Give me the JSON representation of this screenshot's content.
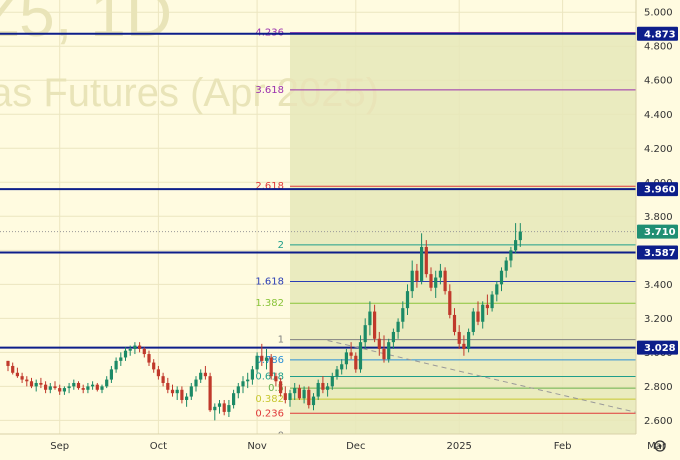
{
  "watermark": {
    "line1": "Z5, 1D",
    "line2": "as Futures (Apr 2025)"
  },
  "chart_data": {
    "type": "candlestick",
    "y_axis_ticks": [
      "5.000",
      "4.800",
      "4.600",
      "4.400",
      "4.200",
      "4.000",
      "3.800",
      "3.600",
      "3.400",
      "3.200",
      "3.000",
      "2.800",
      "2.600"
    ],
    "ylim": [
      2.52,
      5.06
    ],
    "x_axis_ticks": [
      {
        "label": "Sep",
        "t": 11
      },
      {
        "label": "Oct",
        "t": 32
      },
      {
        "label": "Nov",
        "t": 53
      },
      {
        "label": "Dec",
        "t": 74
      },
      {
        "label": "2025",
        "t": 96
      },
      {
        "label": "Feb",
        "t": 118
      },
      {
        "label": "Mar",
        "t": 138
      }
    ],
    "horizontal_levels": [
      {
        "value": 4.873,
        "label": "4.873",
        "color": "#0d1e8a"
      },
      {
        "value": 3.96,
        "label": "3.960",
        "color": "#0d1e8a"
      },
      {
        "value": 3.587,
        "label": "3.587",
        "color": "#0d1e8a"
      },
      {
        "value": 3.028,
        "label": "3.028",
        "color": "#0d1e8a"
      }
    ],
    "last_price": {
      "value": 3.71,
      "label": "3.710",
      "color": "#1f8f73"
    },
    "fibonacci": {
      "start_t": 60,
      "levels": [
        {
          "ratio": "4.236",
          "value": 4.88,
          "color": "#9b2fae"
        },
        {
          "ratio": "3.618",
          "value": 4.543,
          "color": "#9b2fae"
        },
        {
          "ratio": "2.618",
          "value": 3.977,
          "color": "#e03a3a"
        },
        {
          "ratio": "2",
          "value": 3.632,
          "color": "#1f9e8a"
        },
        {
          "ratio": "1.618",
          "value": 3.417,
          "color": "#2a3db5"
        },
        {
          "ratio": "1.382",
          "value": 3.289,
          "color": "#8ac43a"
        },
        {
          "ratio": "1",
          "value": 3.075,
          "color": "#808080"
        },
        {
          "ratio": "0.786",
          "value": 2.956,
          "color": "#2a8fd6"
        },
        {
          "ratio": "0.618",
          "value": 2.858,
          "color": "#1f9e8a"
        },
        {
          "ratio": "0.5",
          "value": 2.79,
          "color": "#6ab04c"
        },
        {
          "ratio": "0.382",
          "value": 2.725,
          "color": "#c8c832"
        },
        {
          "ratio": "0.236",
          "value": 2.642,
          "color": "#e03a3a"
        },
        {
          "ratio": "0",
          "value": 2.51,
          "color": "#808080"
        }
      ]
    },
    "trendline": [
      [
        68,
        3.07
      ],
      [
        141,
        2.6
      ]
    ],
    "candles": [
      [
        2.95,
        2.95,
        2.89,
        2.92
      ],
      [
        2.92,
        2.94,
        2.87,
        2.88
      ],
      [
        2.88,
        2.91,
        2.85,
        2.86
      ],
      [
        2.86,
        2.88,
        2.82,
        2.84
      ],
      [
        2.84,
        2.86,
        2.8,
        2.83
      ],
      [
        2.83,
        2.85,
        2.79,
        2.8
      ],
      [
        2.8,
        2.84,
        2.77,
        2.82
      ],
      [
        2.82,
        2.85,
        2.79,
        2.81
      ],
      [
        2.81,
        2.83,
        2.76,
        2.78
      ],
      [
        2.78,
        2.82,
        2.76,
        2.8
      ],
      [
        2.8,
        2.83,
        2.78,
        2.79
      ],
      [
        2.79,
        2.81,
        2.75,
        2.77
      ],
      [
        2.77,
        2.8,
        2.75,
        2.79
      ],
      [
        2.79,
        2.82,
        2.76,
        2.8
      ],
      [
        2.8,
        2.84,
        2.78,
        2.82
      ],
      [
        2.82,
        2.83,
        2.78,
        2.79
      ],
      [
        2.79,
        2.81,
        2.76,
        2.78
      ],
      [
        2.78,
        2.82,
        2.76,
        2.8
      ],
      [
        2.8,
        2.83,
        2.78,
        2.81
      ],
      [
        2.81,
        2.82,
        2.77,
        2.78
      ],
      [
        2.78,
        2.81,
        2.76,
        2.8
      ],
      [
        2.8,
        2.86,
        2.79,
        2.84
      ],
      [
        2.84,
        2.92,
        2.82,
        2.9
      ],
      [
        2.9,
        2.97,
        2.88,
        2.95
      ],
      [
        2.95,
        3.0,
        2.92,
        2.97
      ],
      [
        2.97,
        3.03,
        2.95,
        3.01
      ],
      [
        3.01,
        3.04,
        2.98,
        3.02
      ],
      [
        3.02,
        3.06,
        2.99,
        3.04
      ],
      [
        3.04,
        3.06,
        3.0,
        3.02
      ],
      [
        3.02,
        3.03,
        2.97,
        2.99
      ],
      [
        2.99,
        3.01,
        2.92,
        2.94
      ],
      [
        2.94,
        2.96,
        2.88,
        2.9
      ],
      [
        2.9,
        2.92,
        2.84,
        2.86
      ],
      [
        2.86,
        2.88,
        2.8,
        2.82
      ],
      [
        2.82,
        2.85,
        2.76,
        2.78
      ],
      [
        2.78,
        2.81,
        2.74,
        2.76
      ],
      [
        2.76,
        2.8,
        2.72,
        2.78
      ],
      [
        2.78,
        2.8,
        2.7,
        2.72
      ],
      [
        2.72,
        2.76,
        2.68,
        2.74
      ],
      [
        2.74,
        2.82,
        2.72,
        2.8
      ],
      [
        2.8,
        2.86,
        2.77,
        2.84
      ],
      [
        2.84,
        2.9,
        2.82,
        2.88
      ],
      [
        2.88,
        2.92,
        2.84,
        2.86
      ],
      [
        2.86,
        2.88,
        2.65,
        2.66
      ],
      [
        2.66,
        2.7,
        2.6,
        2.68
      ],
      [
        2.68,
        2.72,
        2.64,
        2.7
      ],
      [
        2.7,
        2.72,
        2.63,
        2.65
      ],
      [
        2.65,
        2.72,
        2.62,
        2.69
      ],
      [
        2.69,
        2.78,
        2.67,
        2.76
      ],
      [
        2.76,
        2.82,
        2.73,
        2.8
      ],
      [
        2.8,
        2.86,
        2.76,
        2.83
      ],
      [
        2.83,
        2.88,
        2.79,
        2.84
      ],
      [
        2.84,
        2.92,
        2.81,
        2.9
      ],
      [
        2.9,
        3.0,
        2.88,
        2.98
      ],
      [
        2.98,
        3.05,
        2.92,
        2.95
      ],
      [
        2.95,
        3.02,
        2.9,
        2.97
      ],
      [
        2.97,
        2.99,
        2.84,
        2.86
      ],
      [
        2.86,
        2.88,
        2.8,
        2.83
      ],
      [
        2.83,
        2.85,
        2.74,
        2.76
      ],
      [
        2.76,
        2.8,
        2.7,
        2.72
      ],
      [
        2.72,
        2.78,
        2.68,
        2.76
      ],
      [
        2.76,
        2.82,
        2.72,
        2.79
      ],
      [
        2.79,
        2.81,
        2.72,
        2.73
      ],
      [
        2.73,
        2.8,
        2.7,
        2.78
      ],
      [
        2.78,
        2.8,
        2.67,
        2.69
      ],
      [
        2.69,
        2.76,
        2.66,
        2.74
      ],
      [
        2.74,
        2.84,
        2.72,
        2.82
      ],
      [
        2.82,
        2.86,
        2.76,
        2.78
      ],
      [
        2.78,
        2.82,
        2.74,
        2.8
      ],
      [
        2.8,
        2.88,
        2.78,
        2.86
      ],
      [
        2.86,
        2.92,
        2.84,
        2.9
      ],
      [
        2.9,
        2.96,
        2.87,
        2.93
      ],
      [
        2.93,
        3.02,
        2.9,
        3.0
      ],
      [
        3.0,
        3.06,
        2.96,
        2.98
      ],
      [
        2.98,
        3.0,
        2.88,
        2.9
      ],
      [
        2.9,
        3.1,
        2.88,
        3.06
      ],
      [
        3.06,
        3.2,
        3.02,
        3.16
      ],
      [
        3.16,
        3.3,
        3.1,
        3.24
      ],
      [
        3.24,
        3.28,
        3.06,
        3.08
      ],
      [
        3.08,
        3.12,
        2.98,
        3.02
      ],
      [
        3.02,
        3.1,
        2.94,
        2.96
      ],
      [
        2.96,
        3.08,
        2.94,
        3.06
      ],
      [
        3.06,
        3.14,
        3.02,
        3.12
      ],
      [
        3.12,
        3.2,
        3.08,
        3.18
      ],
      [
        3.18,
        3.3,
        3.14,
        3.26
      ],
      [
        3.26,
        3.4,
        3.22,
        3.36
      ],
      [
        3.36,
        3.54,
        3.32,
        3.48
      ],
      [
        3.48,
        3.52,
        3.38,
        3.42
      ],
      [
        3.42,
        3.7,
        3.4,
        3.62
      ],
      [
        3.62,
        3.66,
        3.44,
        3.46
      ],
      [
        3.46,
        3.5,
        3.36,
        3.38
      ],
      [
        3.38,
        3.48,
        3.32,
        3.44
      ],
      [
        3.44,
        3.52,
        3.4,
        3.48
      ],
      [
        3.48,
        3.5,
        3.34,
        3.36
      ],
      [
        3.36,
        3.4,
        3.2,
        3.22
      ],
      [
        3.22,
        3.26,
        3.1,
        3.12
      ],
      [
        3.12,
        3.16,
        3.02,
        3.05
      ],
      [
        3.05,
        3.1,
        2.98,
        3.02
      ],
      [
        3.02,
        3.14,
        3.0,
        3.12
      ],
      [
        3.12,
        3.26,
        3.1,
        3.24
      ],
      [
        3.24,
        3.3,
        3.16,
        3.18
      ],
      [
        3.18,
        3.3,
        3.14,
        3.28
      ],
      [
        3.28,
        3.34,
        3.22,
        3.26
      ],
      [
        3.26,
        3.36,
        3.24,
        3.34
      ],
      [
        3.34,
        3.42,
        3.3,
        3.4
      ],
      [
        3.4,
        3.5,
        3.36,
        3.48
      ],
      [
        3.48,
        3.56,
        3.44,
        3.54
      ],
      [
        3.54,
        3.62,
        3.5,
        3.6
      ],
      [
        3.6,
        3.76,
        3.58,
        3.66
      ],
      [
        3.66,
        3.76,
        3.62,
        3.71
      ]
    ]
  }
}
